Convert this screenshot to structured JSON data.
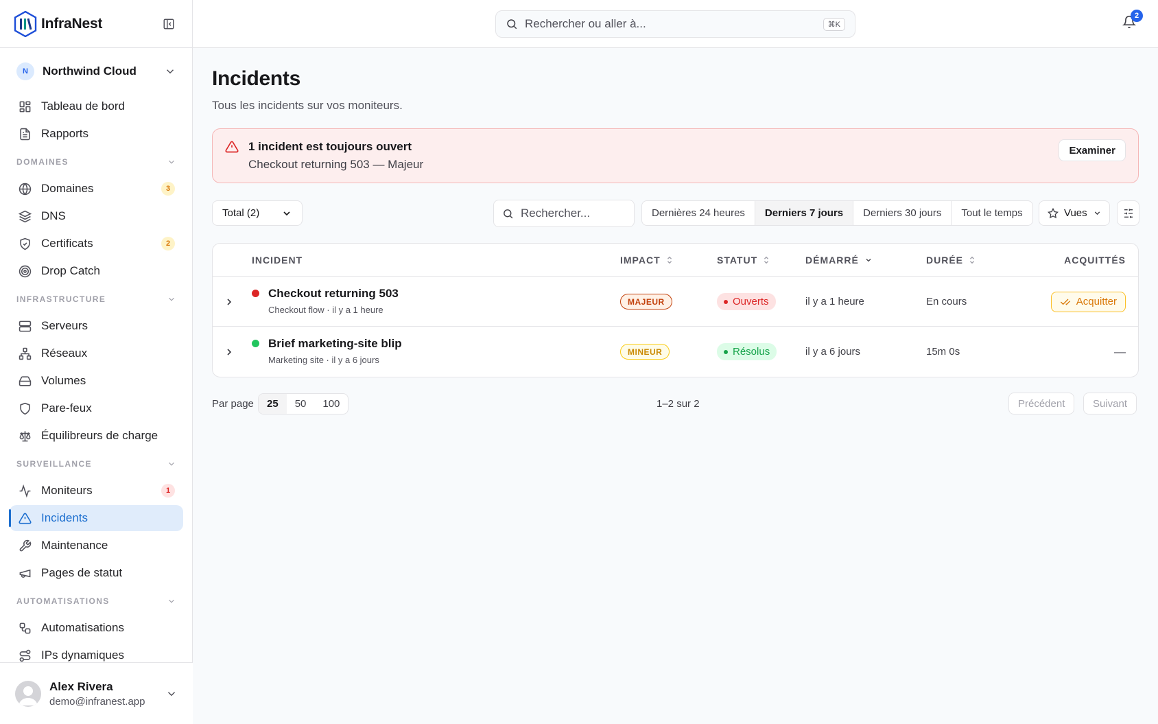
{
  "app": {
    "name": "InfraNest",
    "colors": {
      "accent": "#1d6fcf",
      "danger": "#dc2626",
      "warning": "#d97706",
      "success": "#16a34a"
    }
  },
  "org": {
    "initial": "N",
    "name": "Northwind Cloud"
  },
  "sidebar": {
    "top_items": [
      {
        "label": "Tableau de bord",
        "icon": "dashboard-icon"
      },
      {
        "label": "Rapports",
        "icon": "report-icon"
      }
    ],
    "sections": [
      {
        "title": "DOMAINES",
        "items": [
          {
            "label": "Domaines",
            "icon": "globe-icon",
            "badge": "3"
          },
          {
            "label": "DNS",
            "icon": "layers-icon"
          },
          {
            "label": "Certificats",
            "icon": "shield-check-icon",
            "badge": "2"
          },
          {
            "label": "Drop Catch",
            "icon": "target-icon"
          }
        ]
      },
      {
        "title": "INFRASTRUCTURE",
        "items": [
          {
            "label": "Serveurs",
            "icon": "server-icon"
          },
          {
            "label": "Réseaux",
            "icon": "network-icon"
          },
          {
            "label": "Volumes",
            "icon": "hard-drive-icon"
          },
          {
            "label": "Pare-feux",
            "icon": "shield-icon"
          },
          {
            "label": "Équilibreurs de charge",
            "icon": "scale-icon"
          }
        ]
      },
      {
        "title": "SURVEILLANCE",
        "items": [
          {
            "label": "Moniteurs",
            "icon": "activity-icon",
            "badge": "1"
          },
          {
            "label": "Incidents",
            "icon": "alert-triangle-icon",
            "active": true
          },
          {
            "label": "Maintenance",
            "icon": "wrench-icon"
          },
          {
            "label": "Pages de statut",
            "icon": "megaphone-icon"
          }
        ]
      },
      {
        "title": "AUTOMATISATIONS",
        "items": [
          {
            "label": "Automatisations",
            "icon": "workflow-icon"
          },
          {
            "label": "IPs dynamiques",
            "icon": "route-icon"
          }
        ]
      }
    ]
  },
  "user": {
    "name": "Alex Rivera",
    "email": "demo@infranest.app"
  },
  "topbar": {
    "search_placeholder": "Rechercher ou aller à...",
    "shortcut": "⌘K",
    "notifications": "2"
  },
  "page": {
    "title": "Incidents",
    "subtitle": "Tous les incidents sur vos moniteurs."
  },
  "alert": {
    "title": "1 incident est toujours ouvert",
    "description": "Checkout returning 503 — Majeur",
    "button": "Examiner"
  },
  "filters": {
    "total": "Total (2)",
    "search_placeholder": "Rechercher...",
    "ranges": [
      "Dernières 24 heures",
      "Derniers 7 jours",
      "Derniers 30 jours",
      "Tout le temps"
    ],
    "selected_range": "Derniers 7 jours",
    "views": "Vues"
  },
  "table": {
    "headers": {
      "incident": "INCIDENT",
      "impact": "IMPACT",
      "statut": "STATUT",
      "demarre": "DÉMARRÉ",
      "duree": "DURÉE",
      "acquittes": "ACQUITTÉS"
    },
    "rows": [
      {
        "title": "Checkout returning 503",
        "monitor": "Checkout flow",
        "ago": "il y a 1 heure",
        "dot_color": "#dc2626",
        "impact": "MAJEUR",
        "status": "Ouverts",
        "started": "il y a 1 heure",
        "duration": "En cours",
        "ack": "Acquitter"
      },
      {
        "title": "Brief marketing-site blip",
        "monitor": "Marketing site",
        "ago": "il y a 6 jours",
        "dot_color": "#16a34a",
        "impact": "MINEUR",
        "status": "Résolus",
        "started": "il y a 6 jours",
        "duration": "15m 0s",
        "ack": "—"
      }
    ]
  },
  "pagination": {
    "per_page_label": "Par page",
    "options": [
      "25",
      "50",
      "100"
    ],
    "selected": "25",
    "count": "1–2 sur 2",
    "prev": "Précédent",
    "next": "Suivant"
  }
}
